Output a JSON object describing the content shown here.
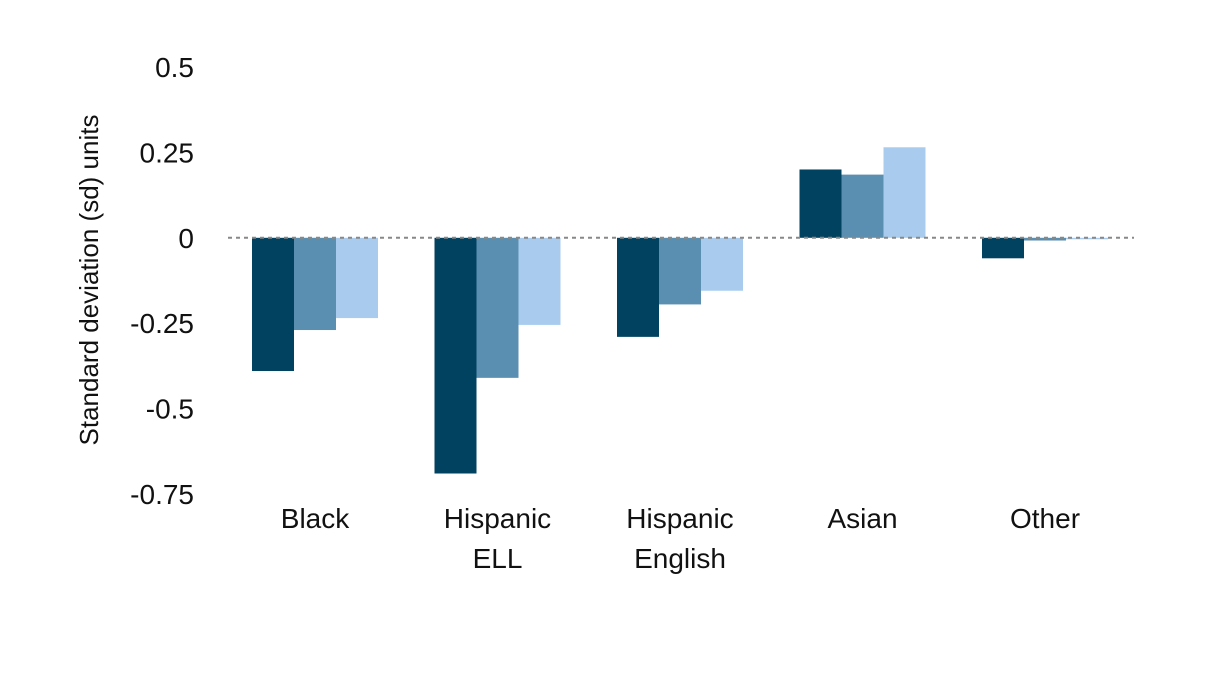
{
  "chart_data": {
    "type": "bar",
    "categories": [
      [
        "Black"
      ],
      [
        "Hispanic",
        "ELL"
      ],
      [
        "Hispanic",
        "English"
      ],
      [
        "Asian"
      ],
      [
        "Other"
      ]
    ],
    "series": [
      {
        "color": "#00425F",
        "values": [
          -0.39,
          -0.69,
          -0.29,
          0.2,
          -0.06
        ]
      },
      {
        "color": "#5B8FB2",
        "values": [
          -0.27,
          -0.41,
          -0.195,
          0.185,
          -0.008
        ]
      },
      {
        "color": "#A9CCEE",
        "values": [
          -0.235,
          -0.255,
          -0.155,
          0.265,
          -0.004
        ]
      }
    ],
    "ylabel": "Standard deviation (sd) units",
    "ylim": [
      -0.75,
      0.5
    ],
    "yticks": [
      0.5,
      0.25,
      0,
      -0.25,
      -0.5,
      -0.75
    ],
    "ytick_labels": [
      "0.5",
      "0.25",
      "0",
      "-0.25",
      "-0.5",
      "-0.75"
    ],
    "zero_line": "dotted",
    "grid": false,
    "legend": "none"
  }
}
